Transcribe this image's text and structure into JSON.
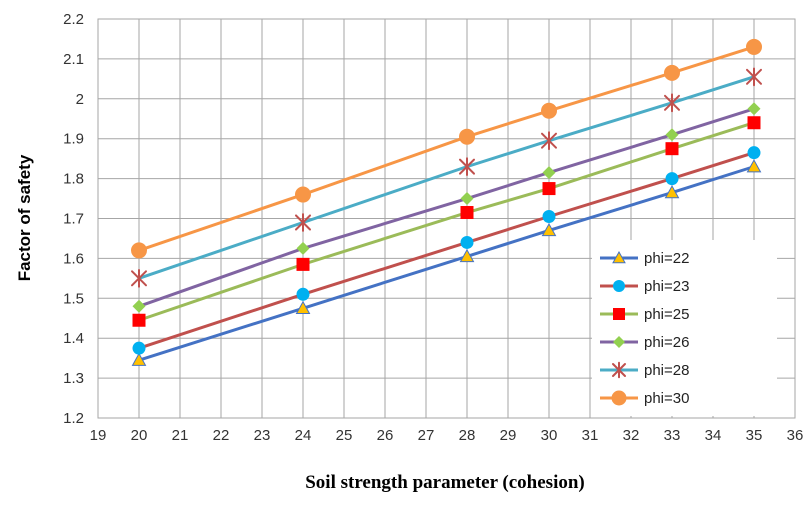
{
  "chart_data": {
    "type": "line",
    "title": "",
    "xlabel": "Soil strength parameter (cohesion)",
    "ylabel": "Factor of safety",
    "xlim": [
      19,
      36
    ],
    "ylim": [
      1.2,
      2.2
    ],
    "xticks": [
      19,
      20,
      21,
      22,
      23,
      24,
      25,
      26,
      27,
      28,
      29,
      30,
      31,
      32,
      33,
      34,
      35,
      36
    ],
    "yticks": [
      "1.2",
      "1.3",
      "1.4",
      "1.5",
      "1.6",
      "1.7",
      "1.8",
      "1.9",
      "2",
      "2.1",
      "2.2"
    ],
    "grid": true,
    "legend_position": "bottom-right",
    "x": [
      20,
      24,
      28,
      30,
      33,
      35
    ],
    "series": [
      {
        "name": "phi=22",
        "values": [
          1.345,
          1.475,
          1.605,
          1.67,
          1.765,
          1.83
        ],
        "color": "#4472C4",
        "marker": "triangle",
        "marker_color": "#FFC000"
      },
      {
        "name": "phi=23",
        "values": [
          1.375,
          1.51,
          1.64,
          1.705,
          1.8,
          1.865
        ],
        "color": "#C0504D",
        "marker": "circle",
        "marker_color": "#00B0F0"
      },
      {
        "name": "phi=25",
        "values": [
          1.445,
          1.585,
          1.715,
          1.775,
          1.875,
          1.94
        ],
        "color": "#9BBB59",
        "marker": "square",
        "marker_color": "#FF0000"
      },
      {
        "name": "phi=26",
        "values": [
          1.48,
          1.625,
          1.75,
          1.815,
          1.91,
          1.975
        ],
        "color": "#8064A2",
        "marker": "diamond",
        "marker_color": "#92D050"
      },
      {
        "name": "phi=28",
        "values": [
          1.55,
          1.69,
          1.83,
          1.895,
          1.99,
          2.055
        ],
        "color": "#4BACC6",
        "marker": "asterisk",
        "marker_color": "#C0504D"
      },
      {
        "name": "phi=30",
        "values": [
          1.62,
          1.76,
          1.905,
          1.97,
          2.065,
          2.13
        ],
        "color": "#F79646",
        "marker": "circle",
        "marker_color": "#F79646"
      }
    ]
  }
}
